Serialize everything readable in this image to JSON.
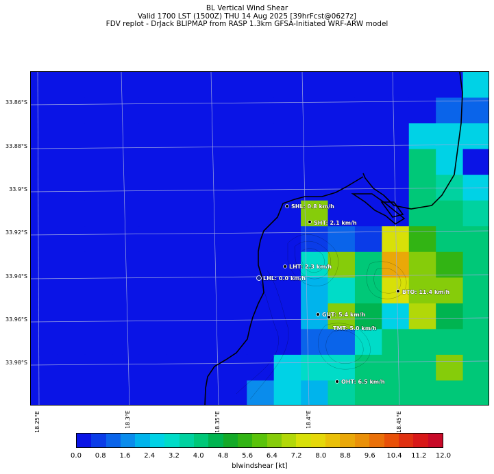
{
  "title_lines": [
    "BL Vertical Wind Shear",
    "Valid 1700 LST (1500Z) THU 14 Aug 2025 [39hrFcst@0627z]",
    "FDV replot - DrJack BLIPMAP from RASP 1.3km GFSA-Initiated WRF-ARW model"
  ],
  "lat_labels": [
    "33.86°S",
    "33.88°S",
    "33.9°S",
    "33.92°S",
    "33.94°S",
    "33.96°S",
    "33.98°S"
  ],
  "lon_labels": [
    "18.25°E",
    "18.3°E",
    "18.35°E",
    "18.4°E",
    "18.45°E"
  ],
  "colorbar": {
    "ticks": [
      "0.0",
      "0.8",
      "1.6",
      "2.4",
      "3.2",
      "4.0",
      "4.8",
      "5.6",
      "6.4",
      "7.2",
      "8.0",
      "8.8",
      "9.6",
      "10.4",
      "11.2",
      "12.0"
    ],
    "label": "blwindshear [kt]",
    "colors": [
      "#0a14e6",
      "#0a3ce8",
      "#0a64ea",
      "#0a8cec",
      "#00b4ec",
      "#00d2e6",
      "#00dcc8",
      "#00d2a0",
      "#00c878",
      "#00b450",
      "#14aa28",
      "#32b414",
      "#5ac30a",
      "#86cc0a",
      "#b2d808",
      "#d8e008",
      "#e6d808",
      "#eac008",
      "#eaa808",
      "#ea9008",
      "#ea7008",
      "#e85008",
      "#e03010",
      "#d81818",
      "#c80a28"
    ]
  },
  "stations": [
    {
      "code": "SHL",
      "label": "SHL: 0.8 km/h"
    },
    {
      "code": "SHT",
      "label": "SHT: 2.1 km/h"
    },
    {
      "code": "LHT",
      "label": "LHT: 2.3 km/h"
    },
    {
      "code": "LHL",
      "label": "LHL: 0.0 km/h"
    },
    {
      "code": "BTO",
      "label": "BTO: 11.4 km/h"
    },
    {
      "code": "GUT",
      "label": "GUT: 5.4 km/h"
    },
    {
      "code": "TMT",
      "label": "TMT: 5.0 km/h"
    },
    {
      "code": "OHT",
      "label": "OHT: 6.5 km/h"
    }
  ],
  "grid": {
    "cols": 17,
    "rows": 13,
    "cells_kt": [
      [
        0,
        0,
        0,
        0,
        0,
        0,
        0,
        0,
        0,
        0,
        0,
        0,
        0,
        0,
        0,
        0,
        2.6
      ],
      [
        0,
        0,
        0,
        0,
        0,
        0,
        0,
        0,
        0,
        0,
        0,
        0,
        0,
        0,
        0,
        1.2,
        1.2
      ],
      [
        0,
        0,
        0,
        0,
        0,
        0,
        0,
        0,
        0,
        0,
        0,
        0,
        0,
        0,
        2.6,
        2.6,
        2.6
      ],
      [
        0,
        0,
        0,
        0,
        0,
        0,
        0,
        0,
        0,
        0,
        0,
        0,
        0,
        0,
        4.0,
        2.6,
        0
      ],
      [
        0,
        0,
        0,
        0,
        0,
        0,
        0,
        0,
        0,
        0,
        0,
        0,
        0,
        0,
        4.2,
        3.4,
        2.6
      ],
      [
        0,
        0,
        0,
        0,
        0,
        0,
        0,
        0,
        0,
        0,
        6.6,
        0,
        0,
        0,
        4.2,
        4.0,
        3.4
      ],
      [
        0,
        0,
        0,
        0,
        0,
        0,
        0,
        0,
        0,
        0,
        0.8,
        1.0,
        0.8,
        7.2,
        5.4,
        4.2,
        4.2
      ],
      [
        0,
        0,
        0,
        0,
        0,
        0,
        0,
        0,
        0,
        0,
        3.0,
        6.6,
        4.2,
        9.0,
        6.6,
        5.4,
        4.2
      ],
      [
        0,
        0,
        0,
        0,
        0,
        0,
        0,
        0,
        0,
        0,
        2.2,
        3.2,
        4.2,
        7.2,
        6.6,
        6.6,
        4.2
      ],
      [
        0,
        0,
        0,
        0,
        0,
        0,
        0,
        0,
        0,
        0,
        2.2,
        6.6,
        4.4,
        2.4,
        7.0,
        4.6,
        4.2
      ],
      [
        0,
        0,
        0,
        0,
        0,
        0,
        0,
        0,
        0,
        0,
        1.2,
        1.0,
        3.0,
        4.2,
        4.2,
        4.2,
        4.2
      ],
      [
        0,
        0,
        0,
        0,
        0,
        0,
        0,
        0,
        0,
        2.8,
        3.0,
        3.2,
        4.2,
        4.2,
        4.2,
        6.6,
        4.2
      ],
      [
        0,
        0,
        0,
        0,
        0,
        0,
        0,
        0,
        1.6,
        2.6,
        2.2,
        3.4,
        4.2,
        4.0,
        4.2,
        4.2,
        4.2
      ]
    ]
  }
}
